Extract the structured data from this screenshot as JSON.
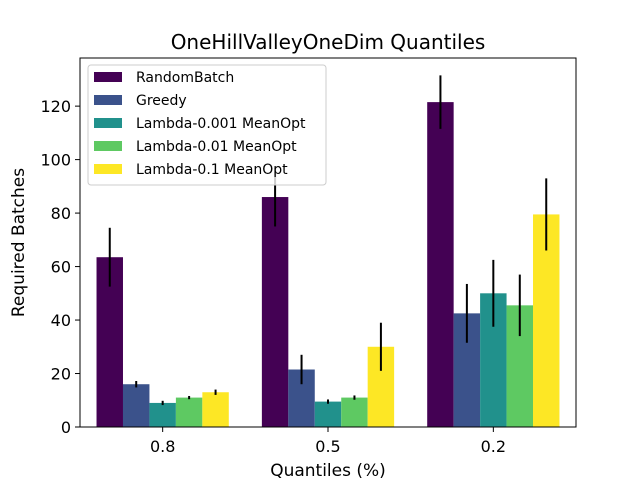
{
  "chart_data": {
    "type": "bar",
    "title": "OneHillValleyOneDim Quantiles",
    "xlabel": "Quantiles (%)",
    "ylabel": "Required Batches",
    "categories": [
      "0.8",
      "0.5",
      "0.2"
    ],
    "ylim": [
      0,
      138
    ],
    "yticks": [
      0,
      20,
      40,
      60,
      80,
      100,
      120
    ],
    "grid": false,
    "legend_position": "top-left",
    "series": [
      {
        "name": "RandomBatch",
        "color": "#440154",
        "values": [
          63.5,
          86,
          121.5
        ],
        "errors": [
          11,
          11,
          10
        ]
      },
      {
        "name": "Greedy",
        "color": "#3b528b",
        "values": [
          16,
          21.5,
          42.5
        ],
        "errors": [
          1.2,
          5.5,
          11
        ]
      },
      {
        "name": "Lambda-0.001 MeanOpt",
        "color": "#21918c",
        "values": [
          9,
          9.5,
          50
        ],
        "errors": [
          0.8,
          0.8,
          12.5
        ]
      },
      {
        "name": "Lambda-0.01 MeanOpt",
        "color": "#5ec962",
        "values": [
          11,
          11,
          45.5
        ],
        "errors": [
          0.6,
          0.8,
          11.5
        ]
      },
      {
        "name": "Lambda-0.1 MeanOpt",
        "color": "#fde725",
        "values": [
          13,
          30,
          79.5
        ],
        "errors": [
          1,
          9,
          13.5
        ]
      }
    ]
  }
}
